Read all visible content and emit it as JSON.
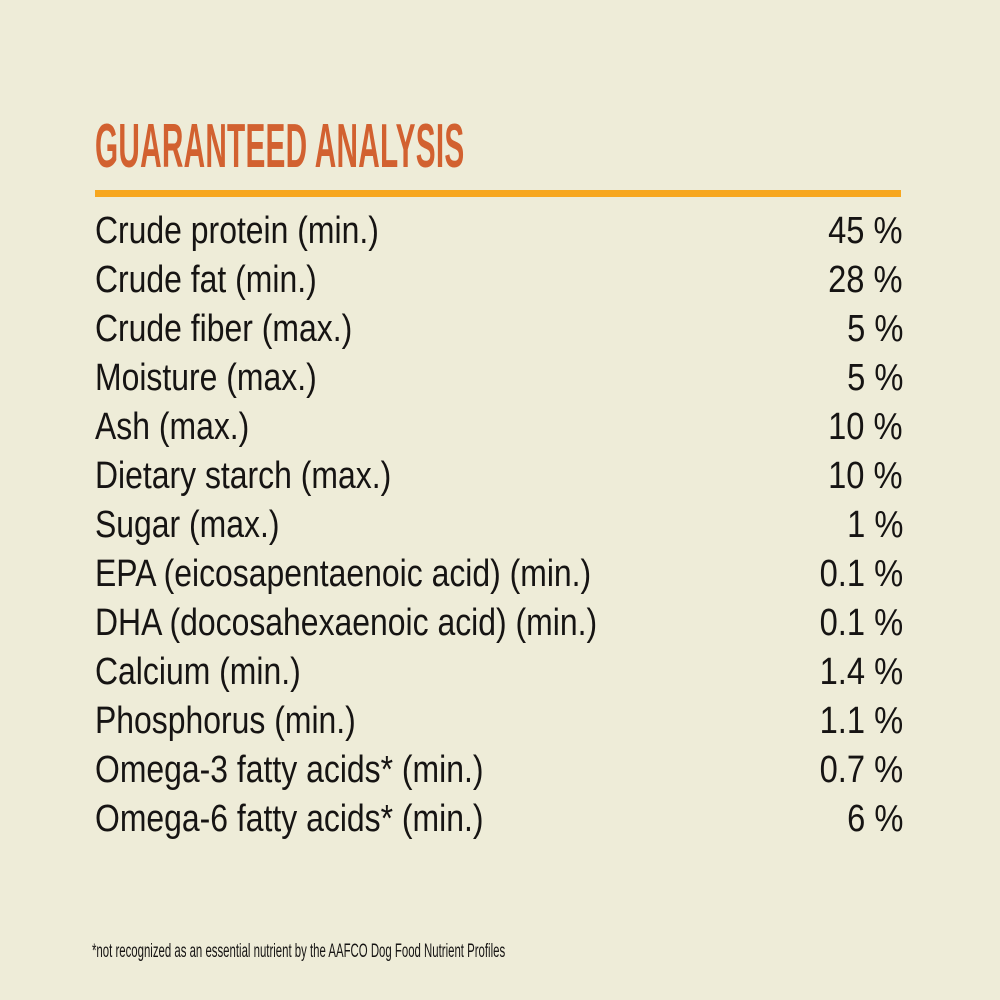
{
  "colors": {
    "background": "#eeecd8",
    "heading": "#d26130",
    "rule": "#f7a71f",
    "text": "#161413"
  },
  "header": {
    "title": "GUARANTEED ANALYSIS"
  },
  "analysis": {
    "rows": [
      {
        "label": "Crude protein (min.)",
        "value": "45 %"
      },
      {
        "label": "Crude fat (min.)",
        "value": "28 %"
      },
      {
        "label": "Crude fiber (max.)",
        "value": "5 %"
      },
      {
        "label": "Moisture (max.)",
        "value": "5 %"
      },
      {
        "label": "Ash (max.)",
        "value": "10 %"
      },
      {
        "label": "Dietary starch (max.)",
        "value": "10 %"
      },
      {
        "label": "Sugar (max.)",
        "value": "1 %"
      },
      {
        "label": "EPA (eicosapentaenoic acid) (min.)",
        "value": "0.1 %"
      },
      {
        "label": "DHA (docosahexaenoic acid) (min.)",
        "value": "0.1 %"
      },
      {
        "label": "Calcium (min.)",
        "value": "1.4 %"
      },
      {
        "label": "Phosphorus (min.)",
        "value": "1.1 %"
      },
      {
        "label": "Omega-3 fatty acids* (min.)",
        "value": "0.7 %"
      },
      {
        "label": "Omega-6 fatty acids* (min.)",
        "value": "6 %"
      }
    ],
    "footnote": "*not recognized as an essential nutrient by the AAFCO Dog Food Nutrient Profiles"
  }
}
